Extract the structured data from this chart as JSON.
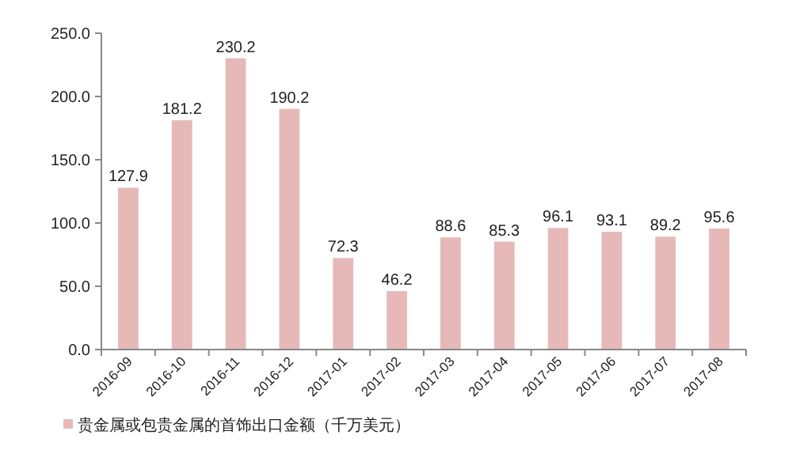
{
  "chart_data": {
    "type": "bar",
    "categories": [
      "2016-09",
      "2016-10",
      "2016-11",
      "2016-12",
      "2017-01",
      "2017-02",
      "2017-03",
      "2017-04",
      "2017-05",
      "2017-06",
      "2017-07",
      "2017-08"
    ],
    "series": [
      {
        "name": "贵金属或包贵金属的首饰出口金额（千万美元）",
        "color": "#e6b9b8",
        "values": [
          127.9,
          181.2,
          230.2,
          190.2,
          72.3,
          46.2,
          88.6,
          85.3,
          96.1,
          93.1,
          89.2,
          95.6
        ]
      }
    ],
    "ylim": [
      0,
      250
    ],
    "yticks": [
      {
        "value": 0,
        "label": "0.0"
      },
      {
        "value": 50,
        "label": "50.0"
      },
      {
        "value": 100,
        "label": "100.0"
      },
      {
        "value": 150,
        "label": "150.0"
      },
      {
        "value": 200,
        "label": "200.0"
      },
      {
        "value": 250,
        "label": "250.0"
      }
    ],
    "data_labels": true,
    "grid": false,
    "legend": "bottom left"
  }
}
